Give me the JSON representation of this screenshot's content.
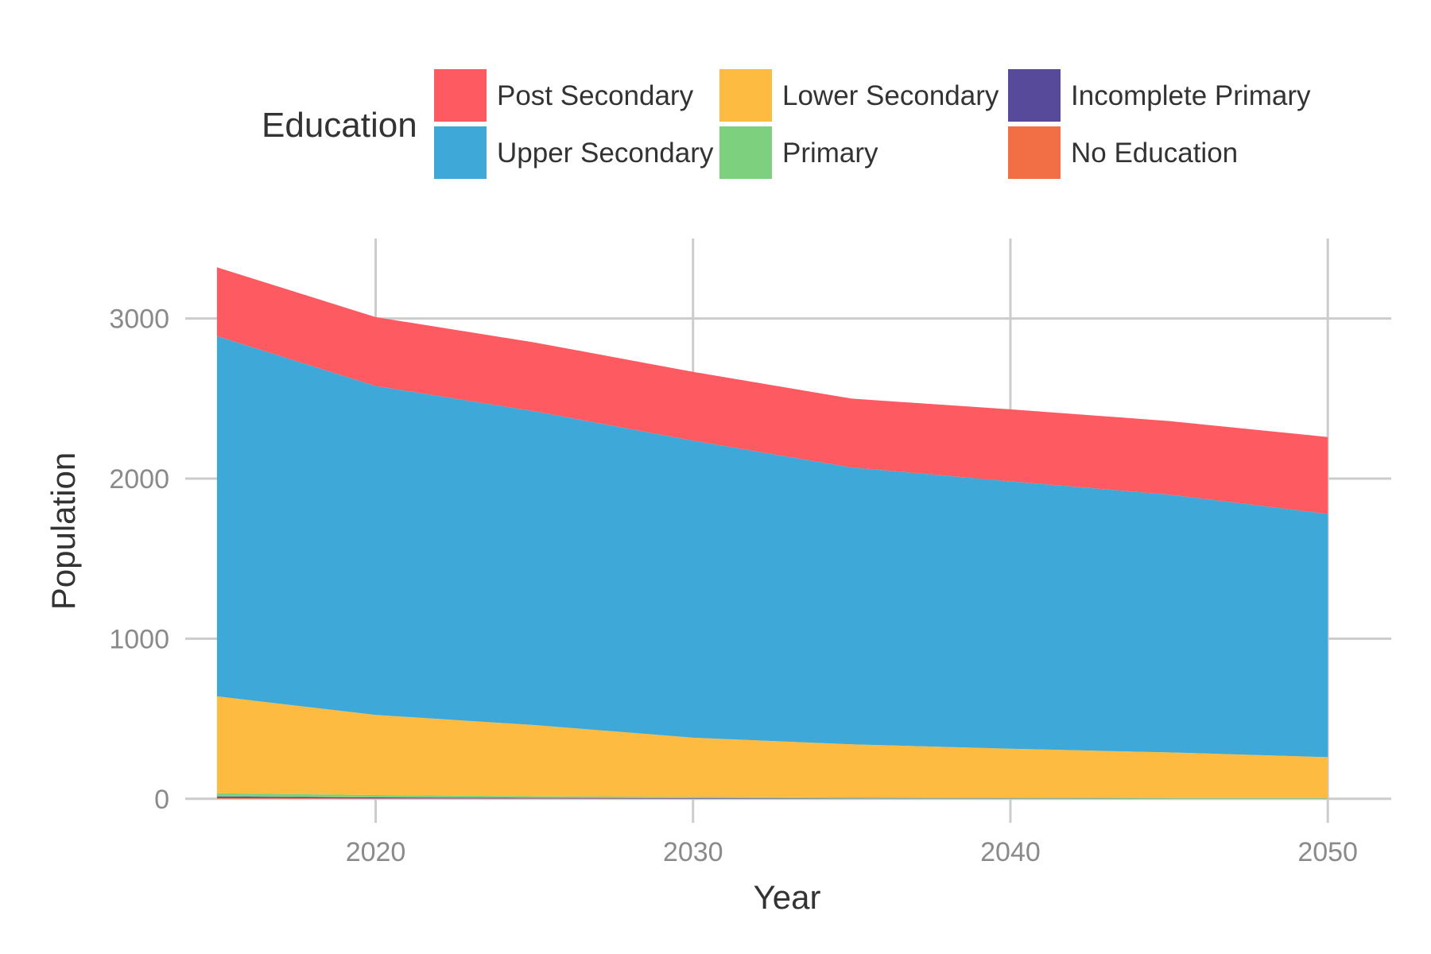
{
  "chart_data": {
    "type": "area",
    "stacked": true,
    "xlabel": "Year",
    "ylabel": "Population",
    "xlim": [
      2014,
      2052
    ],
    "ylim": [
      -150,
      3500
    ],
    "xticks": [
      2020,
      2030,
      2040,
      2050
    ],
    "yticks": [
      0,
      1000,
      2000,
      3000
    ],
    "grid": true,
    "legend": {
      "title": "Education",
      "position": "top"
    },
    "x": [
      2015,
      2020,
      2025,
      2030,
      2035,
      2040,
      2045,
      2050
    ],
    "series": [
      {
        "name": "No Education",
        "color": "#F26E45",
        "values": [
          5,
          3,
          2,
          1,
          1,
          1,
          0,
          0
        ]
      },
      {
        "name": "Incomplete Primary",
        "color": "#574A9A",
        "values": [
          10,
          6,
          4,
          3,
          2,
          2,
          1,
          1
        ]
      },
      {
        "name": "Primary",
        "color": "#7CD07E",
        "values": [
          20,
          15,
          10,
          8,
          6,
          5,
          4,
          4
        ]
      },
      {
        "name": "Lower Secondary",
        "color": "#FDBC41",
        "values": [
          605,
          500,
          445,
          370,
          331,
          305,
          285,
          255
        ]
      },
      {
        "name": "Upper Secondary",
        "color": "#3EA9D8",
        "values": [
          2250,
          2055,
          1960,
          1855,
          1730,
          1670,
          1610,
          1520
        ]
      },
      {
        "name": "Post Secondary",
        "color": "#FD5B61",
        "values": [
          430,
          430,
          430,
          430,
          430,
          450,
          460,
          480
        ]
      }
    ],
    "legend_order": [
      "Post Secondary",
      "Upper Secondary",
      "Lower Secondary",
      "Primary",
      "Incomplete Primary",
      "No Education"
    ]
  }
}
